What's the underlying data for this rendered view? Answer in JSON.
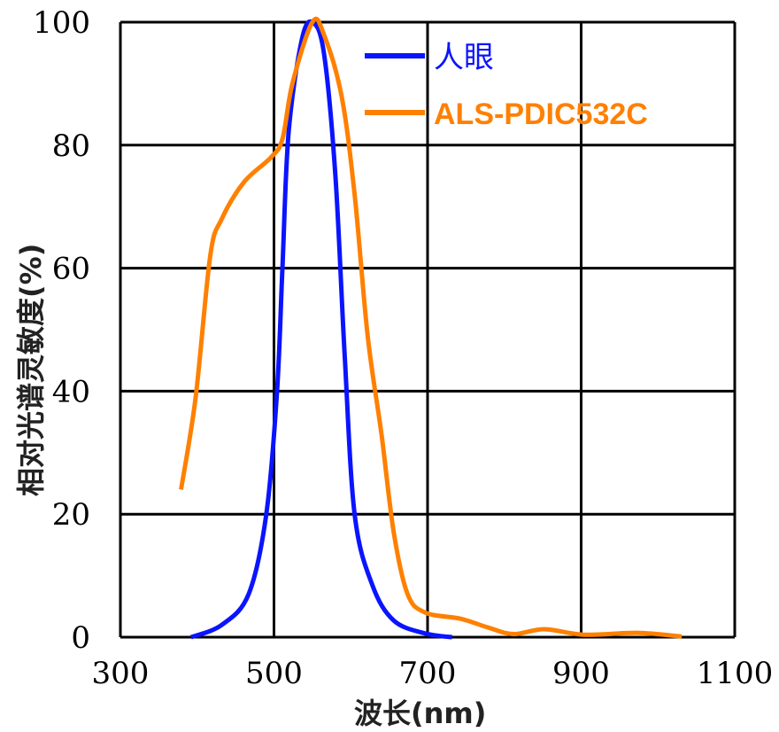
{
  "chart_data": {
    "type": "line",
    "title": "",
    "xlabel": "波长(nm)",
    "ylabel": "相对光谱灵敏度(%)",
    "xlim": [
      300,
      1100
    ],
    "ylim": [
      0,
      100
    ],
    "xticks": [
      300,
      500,
      700,
      900,
      1100
    ],
    "yticks": [
      0,
      20,
      40,
      60,
      80,
      100
    ],
    "grid": true,
    "legend_position": "top-right",
    "series": [
      {
        "name": "人眼",
        "color": "#0a14ff",
        "x": [
          392,
          432,
          467,
          490,
          504,
          511,
          519,
          536,
          550,
          565,
          580,
          592,
          605,
          628,
          656,
          697,
          732
        ],
        "y": [
          0,
          2,
          7,
          20,
          40,
          60,
          82,
          97,
          100,
          95,
          75,
          46,
          20,
          8.5,
          2.7,
          0.6,
          0
        ]
      },
      {
        "name": "ALS-PDIC532C",
        "color": "#ff8000",
        "x": [
          379,
          398,
          417,
          432,
          461,
          496,
          511,
          524,
          550,
          565,
          588,
          605,
          622,
          640,
          656,
          674,
          697,
          743,
          778,
          812,
          852,
          904,
          973,
          1031
        ],
        "y": [
          24,
          39,
          62,
          68,
          74,
          78,
          81,
          90,
          100,
          98,
          88,
          72,
          49,
          33,
          17,
          7,
          4,
          3,
          1.6,
          0.5,
          1.3,
          0.4,
          0.7,
          0.1
        ]
      }
    ]
  }
}
